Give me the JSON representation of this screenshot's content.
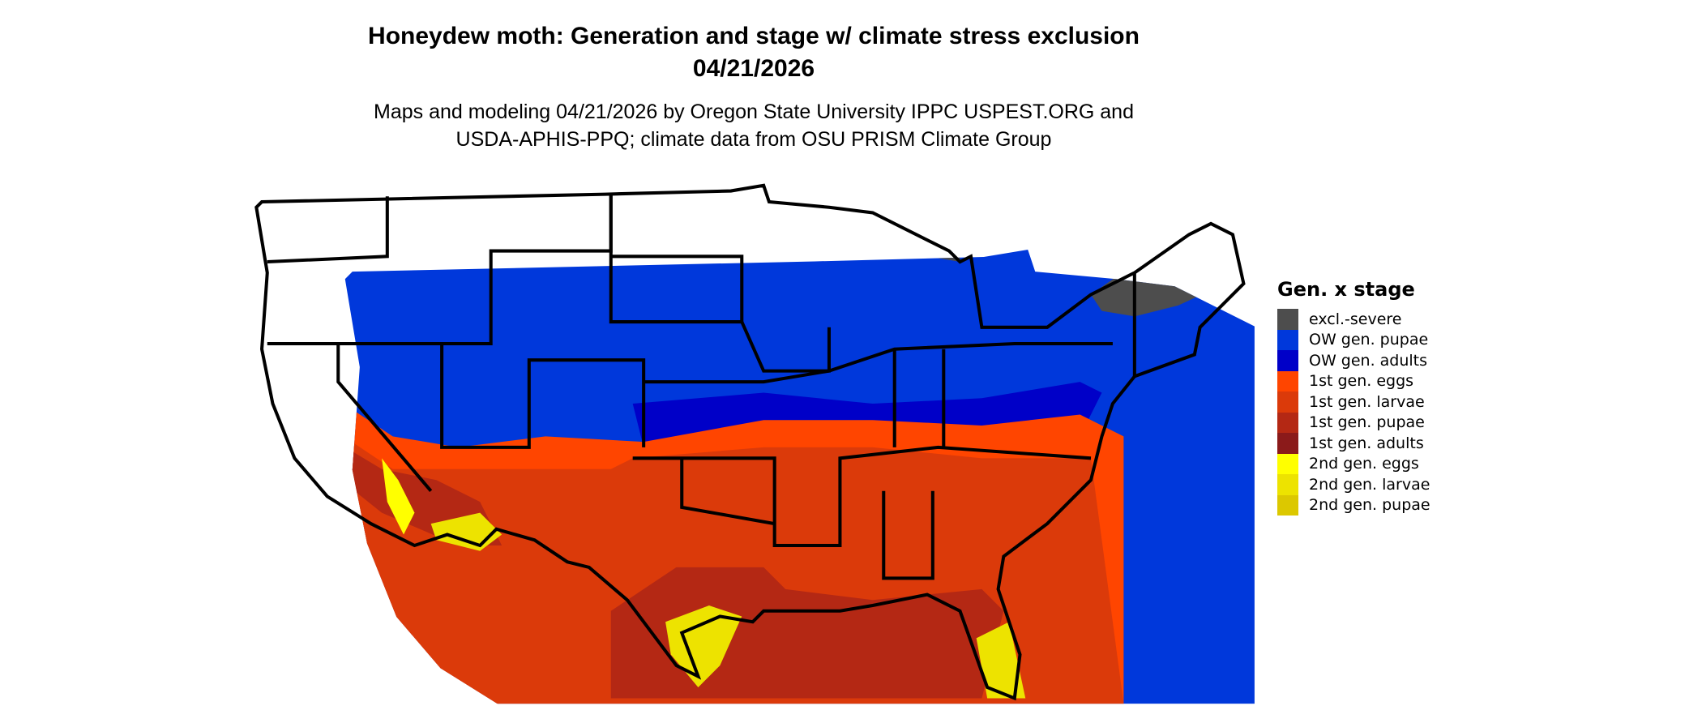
{
  "title": "Honeydew moth: Generation and stage w/ climate stress exclusion",
  "date": "04/21/2026",
  "subtitle_line1": "Maps and modeling 04/21/2026 by Oregon State University IPPC USPEST.ORG and",
  "subtitle_line2": "USDA-APHIS-PPQ; climate data from OSU PRISM Climate Group",
  "legend": {
    "title": "Gen. x stage",
    "items": [
      {
        "label": "excl.-severe",
        "color": "#4d4d4d"
      },
      {
        "label": "OW gen. pupae",
        "color": "#0038db"
      },
      {
        "label": "OW gen. adults",
        "color": "#0000c8"
      },
      {
        "label": "1st gen. eggs",
        "color": "#ff4500"
      },
      {
        "label": "1st gen. larvae",
        "color": "#db3a0a"
      },
      {
        "label": "1st gen. pupae",
        "color": "#b42814"
      },
      {
        "label": "1st gen. adults",
        "color": "#8b1a1a"
      },
      {
        "label": "2nd gen. eggs",
        "color": "#ffff00"
      },
      {
        "label": "2nd gen. larvae",
        "color": "#ede300"
      },
      {
        "label": "2nd gen. pupae",
        "color": "#dcc800"
      }
    ]
  }
}
